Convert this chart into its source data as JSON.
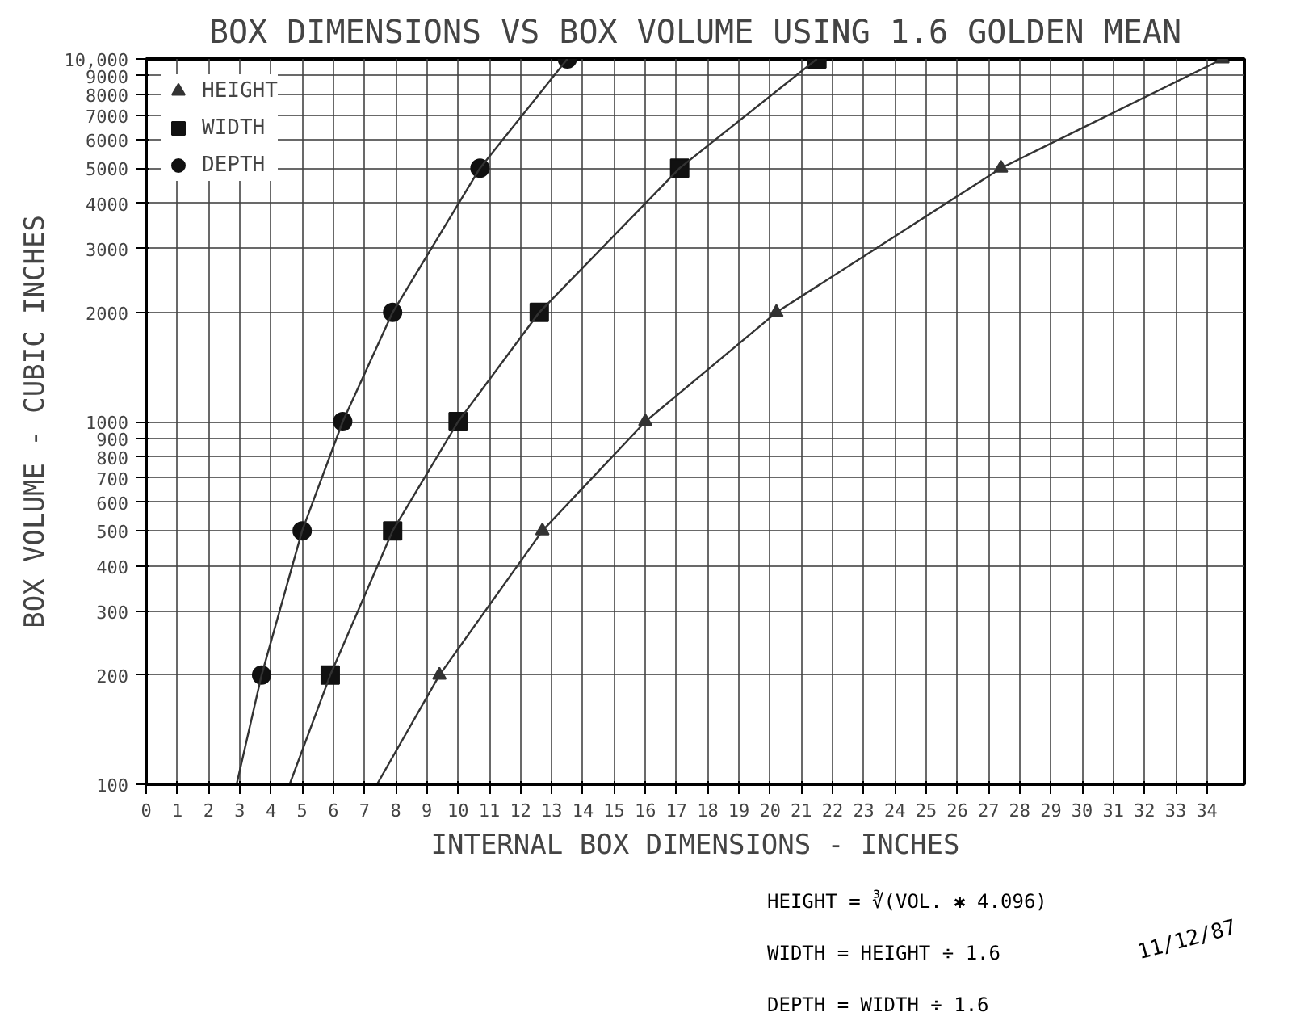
{
  "chart_data": {
    "type": "scatter",
    "title": "BOX DIMENSIONS VS BOX VOLUME USING 1.6 GOLDEN MEAN",
    "xlabel": "INTERNAL BOX DIMENSIONS - INCHES",
    "ylabel": "BOX VOLUME - CUBIC INCHES",
    "annotations": [
      "HEIGHT = ∛(VOL. ✱ 4.096)",
      "WIDTH = HEIGHT ÷ 1.6",
      "DEPTH = WIDTH ÷ 1.6",
      "11/12/87"
    ],
    "log": "y",
    "grid": true,
    "legend": "top left",
    "xlim": [
      0,
      35.2
    ],
    "xticks": [
      0,
      1,
      2,
      3,
      4,
      5,
      6,
      7,
      8,
      9,
      10,
      11,
      12,
      13,
      14,
      15,
      16,
      17,
      18,
      19,
      20,
      21,
      22,
      23,
      24,
      25,
      26,
      27,
      28,
      29,
      30,
      31,
      32,
      33,
      34
    ],
    "ylim": [
      100,
      10000
    ],
    "yticks": [
      100,
      200,
      300,
      400,
      500,
      600,
      700,
      800,
      900,
      1000,
      2000,
      3000,
      4000,
      5000,
      6000,
      7000,
      8000,
      9000,
      {
        "value": 10000,
        "label": "10,000"
      }
    ],
    "series": [
      {
        "name": "HEIGHT",
        "marker": "triangle",
        "color": "#333333",
        "x": [
          9.4,
          12.7,
          16.0,
          20.2,
          27.4,
          34.5
        ],
        "values": [
          200,
          500,
          1000,
          2000,
          5000,
          10000
        ]
      },
      {
        "name": "WIDTH",
        "marker": "square",
        "color": "#111111",
        "x": [
          5.9,
          7.9,
          10.0,
          12.6,
          17.1,
          21.5
        ],
        "values": [
          200,
          500,
          1000,
          2000,
          5000,
          10000
        ]
      },
      {
        "name": "DEPTH",
        "marker": "circle",
        "color": "#111111",
        "x": [
          3.7,
          5.0,
          6.3,
          7.9,
          10.7,
          13.5
        ],
        "values": [
          200,
          500,
          1000,
          2000,
          5000,
          10000
        ]
      },
      {
        "type": "line",
        "marker": "none",
        "line_style": "solid",
        "color": "#333333",
        "x": [
          7.4,
          9.4,
          12.7,
          16.0,
          20.2,
          27.4,
          34.5
        ],
        "values": [
          100,
          200,
          500,
          1000,
          2000,
          5000,
          10000
        ]
      },
      {
        "type": "line",
        "marker": "none",
        "line_style": "solid",
        "color": "#333333",
        "x": [
          4.6,
          5.9,
          7.9,
          10.0,
          12.6,
          17.1,
          21.5
        ],
        "values": [
          100,
          200,
          500,
          1000,
          2000,
          5000,
          10000
        ]
      },
      {
        "type": "line",
        "marker": "none",
        "line_style": "solid",
        "color": "#333333",
        "x": [
          2.9,
          3.7,
          5.0,
          6.3,
          7.9,
          10.7,
          13.5
        ],
        "values": [
          100,
          200,
          500,
          1000,
          2000,
          5000,
          10000
        ]
      }
    ]
  }
}
